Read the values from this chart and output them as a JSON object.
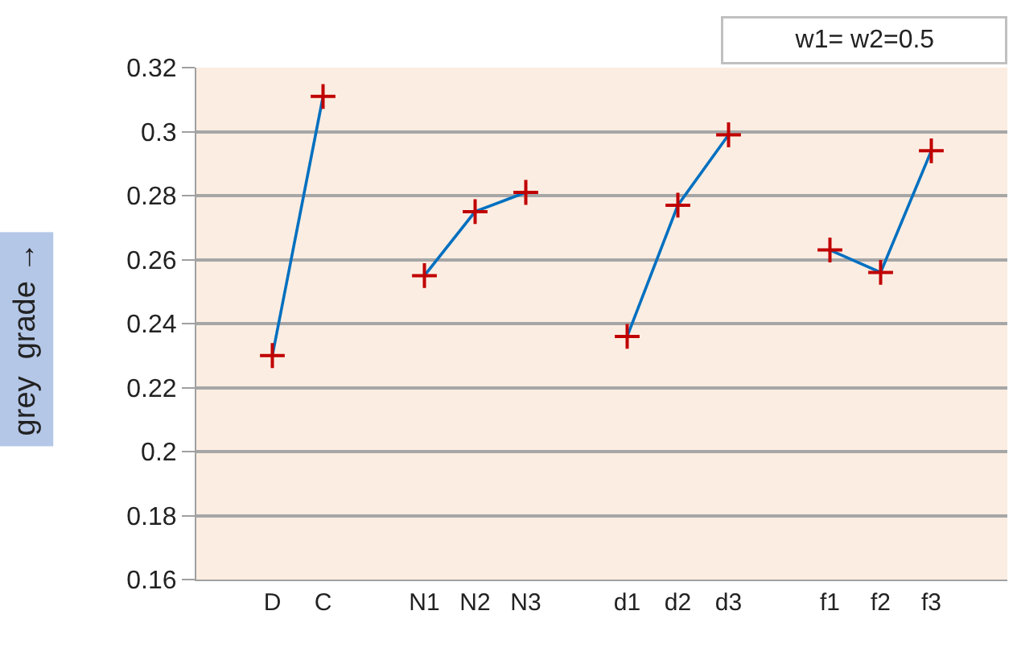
{
  "chart_data": {
    "type": "line",
    "categories": [
      null,
      "D",
      "C",
      null,
      "N1",
      "N2",
      "N3",
      null,
      "d1",
      "d2",
      "d3",
      null,
      "f1",
      "f2",
      "f3",
      null
    ],
    "series": [
      {
        "color": "#0070c0",
        "colors": [
          "#c00000",
          "#c00000",
          "#c00000",
          "#c00000",
          "#c00000",
          "#c00000",
          "#c00000",
          "#c00000",
          "#c00000",
          "#c00000",
          "#c00000",
          "#c00000",
          "#c00000",
          "#c00000",
          "#c00000",
          "#c00000"
        ],
        "values": [
          null,
          0.23,
          0.311,
          null,
          0.255,
          0.275,
          0.281,
          null,
          0.236,
          0.277,
          0.299,
          null,
          0.263,
          0.256,
          0.294,
          null
        ]
      }
    ],
    "ylabel": "grey  grade →",
    "ylim": [
      0.16,
      0.32
    ],
    "yticks": [
      0.16,
      0.18,
      0.2,
      0.22,
      0.24,
      0.26,
      0.28,
      0.3,
      0.32
    ],
    "annotations": [
      "w1= w2=0.5"
    ],
    "grid": "y",
    "legend": false,
    "marker": "cross",
    "line_style": "solid"
  }
}
